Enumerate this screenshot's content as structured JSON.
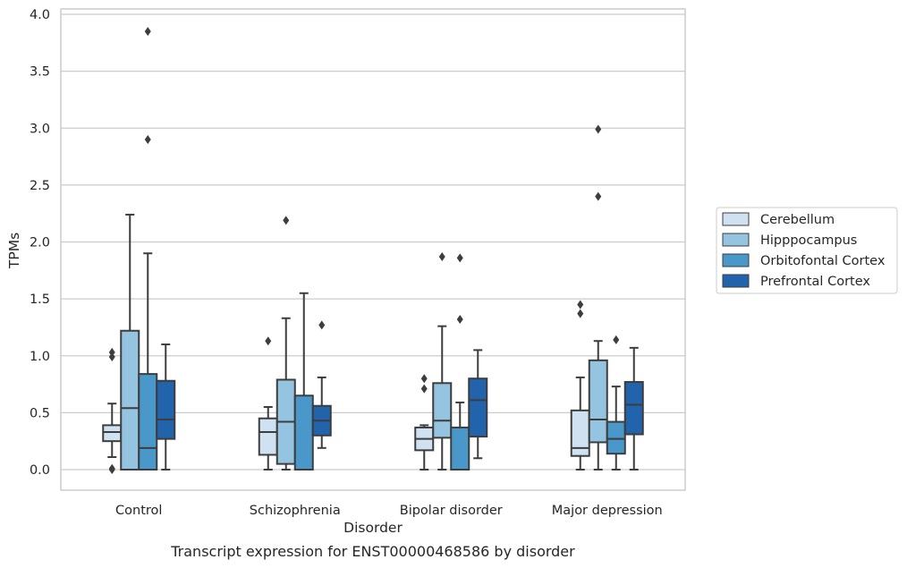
{
  "chart_data": {
    "type": "box",
    "title": "",
    "caption": "Transcript expression for ENST00000468586 by disorder",
    "xlabel": "Disorder",
    "ylabel": "TPMs",
    "ylim": [
      -0.18,
      4.05
    ],
    "yticks": [
      "0.0",
      "0.5",
      "1.0",
      "1.5",
      "2.0",
      "2.5",
      "3.0",
      "3.5",
      "4.0"
    ],
    "grid": "horizontal",
    "legend_position": "right",
    "categories": [
      "Control",
      "Schizophrenia",
      "Bipolar disorder",
      "Major depression"
    ],
    "series": [
      {
        "name": "Cerebellum",
        "color": "#d0e1f2",
        "boxes": [
          {
            "q1": 0.25,
            "median": 0.33,
            "q3": 0.39,
            "whisker_low": 0.11,
            "whisker_high": 0.58,
            "outliers": [
              1.03,
              0.99,
              0.01,
              0.0
            ]
          },
          {
            "q1": 0.13,
            "median": 0.33,
            "q3": 0.45,
            "whisker_low": 0.0,
            "whisker_high": 0.55,
            "outliers": [
              1.13
            ]
          },
          {
            "q1": 0.17,
            "median": 0.27,
            "q3": 0.37,
            "whisker_low": 0.0,
            "whisker_high": 0.39,
            "outliers": [
              0.8,
              0.71
            ]
          },
          {
            "q1": 0.12,
            "median": 0.19,
            "q3": 0.52,
            "whisker_low": 0.0,
            "whisker_high": 0.81,
            "outliers": [
              1.45,
              1.37
            ]
          }
        ]
      },
      {
        "name": "Hipppocampus",
        "color": "#94c4df",
        "boxes": [
          {
            "q1": 0.0,
            "median": 0.54,
            "q3": 1.22,
            "whisker_low": 0.0,
            "whisker_high": 2.24,
            "outliers": []
          },
          {
            "q1": 0.05,
            "median": 0.42,
            "q3": 0.79,
            "whisker_low": 0.0,
            "whisker_high": 1.33,
            "outliers": [
              2.19
            ]
          },
          {
            "q1": 0.28,
            "median": 0.43,
            "q3": 0.76,
            "whisker_low": 0.0,
            "whisker_high": 1.26,
            "outliers": [
              1.87
            ]
          },
          {
            "q1": 0.24,
            "median": 0.44,
            "q3": 0.96,
            "whisker_low": 0.0,
            "whisker_high": 1.13,
            "outliers": [
              2.99,
              2.4
            ]
          }
        ]
      },
      {
        "name": "Orbitofontal Cortex",
        "color": "#4a98c9",
        "boxes": [
          {
            "q1": 0.0,
            "median": 0.19,
            "q3": 0.84,
            "whisker_low": 0.0,
            "whisker_high": 1.9,
            "outliers": [
              3.85,
              2.9
            ]
          },
          {
            "q1": 0.0,
            "median": 0.0,
            "q3": 0.65,
            "whisker_low": 0.0,
            "whisker_high": 1.55,
            "outliers": []
          },
          {
            "q1": 0.0,
            "median": 0.0,
            "q3": 0.37,
            "whisker_low": 0.0,
            "whisker_high": 0.59,
            "outliers": [
              1.86,
              1.32
            ]
          },
          {
            "q1": 0.14,
            "median": 0.27,
            "q3": 0.42,
            "whisker_low": 0.0,
            "whisker_high": 0.73,
            "outliers": [
              1.14
            ]
          }
        ]
      },
      {
        "name": "Prefrontal Cortex",
        "color": "#2164ab",
        "boxes": [
          {
            "q1": 0.27,
            "median": 0.44,
            "q3": 0.78,
            "whisker_low": 0.0,
            "whisker_high": 1.1,
            "outliers": []
          },
          {
            "q1": 0.3,
            "median": 0.43,
            "q3": 0.56,
            "whisker_low": 0.19,
            "whisker_high": 0.81,
            "outliers": [
              1.27
            ]
          },
          {
            "q1": 0.29,
            "median": 0.61,
            "q3": 0.8,
            "whisker_low": 0.1,
            "whisker_high": 1.05,
            "outliers": []
          },
          {
            "q1": 0.31,
            "median": 0.57,
            "q3": 0.77,
            "whisker_low": 0.0,
            "whisker_high": 1.07,
            "outliers": []
          }
        ]
      }
    ]
  }
}
